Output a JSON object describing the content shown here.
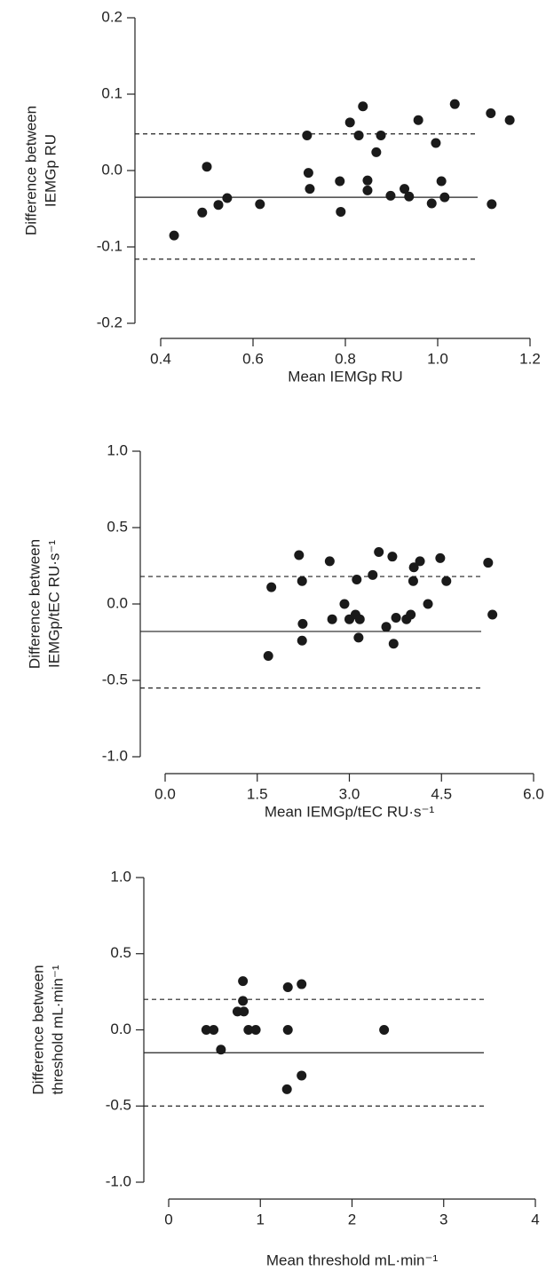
{
  "chart_data": [
    {
      "type": "scatter",
      "color": "#1a1a1a",
      "ylabel": [
        "Difference between",
        "IEMGp RU"
      ],
      "xlabel": "Mean IEMGp RU",
      "xlim": [
        0.4,
        1.2
      ],
      "xticks": [
        0.4,
        0.6,
        0.8,
        {
          "value": 1,
          "label": "1.0"
        },
        1.2
      ],
      "ylim": [
        -0.2,
        0.2
      ],
      "yticks": [
        -0.2,
        -0.1,
        {
          "value": 0,
          "label": "0.0"
        },
        0.1,
        0.2
      ],
      "mean_line": -0.035,
      "limit_lines": [
        0.048,
        -0.116
      ],
      "x": [
        0.429,
        0.49,
        0.5,
        0.525,
        0.544,
        0.615,
        0.717,
        0.72,
        0.723,
        0.788,
        0.79,
        0.81,
        0.829,
        0.838,
        0.848,
        0.848,
        0.867,
        0.877,
        0.898,
        0.928,
        0.938,
        0.958,
        0.987,
        0.996,
        1.008,
        1.015,
        1.037,
        1.115,
        1.117,
        1.156
      ],
      "y": [
        -0.085,
        -0.055,
        0.005,
        -0.045,
        -0.036,
        -0.044,
        0.046,
        -0.003,
        -0.024,
        -0.014,
        -0.054,
        0.063,
        0.046,
        0.084,
        -0.013,
        -0.026,
        0.024,
        0.046,
        -0.033,
        -0.024,
        -0.034,
        0.066,
        -0.043,
        0.036,
        -0.014,
        -0.035,
        0.087,
        0.075,
        -0.044,
        0.066
      ]
    },
    {
      "type": "scatter",
      "color": "#1a1a1a",
      "ylabel": [
        "Difference between",
        "IEMGp/tEC RU·s⁻¹"
      ],
      "xlabel": "Mean IEMGp/tEC RU·s⁻¹",
      "xlim": [
        0,
        6
      ],
      "xticks": [
        {
          "value": 0,
          "label": "0.0"
        },
        1.5,
        {
          "value": 3,
          "label": "3.0"
        },
        4.5,
        {
          "value": 6,
          "label": "6.0"
        }
      ],
      "ylim": [
        -1,
        1
      ],
      "yticks": [
        {
          "value": -1,
          "label": "-1.0"
        },
        -0.5,
        {
          "value": 0,
          "label": "0.0"
        },
        0.5,
        {
          "value": 1,
          "label": "1.0"
        }
      ],
      "mean_line": -0.18,
      "limit_lines": [
        0.18,
        -0.55
      ],
      "x": [
        1.73,
        1.68,
        2.18,
        2.23,
        2.24,
        2.23,
        2.68,
        2.72,
        2.92,
        3.0,
        3.1,
        3.12,
        3.15,
        3.17,
        3.38,
        3.48,
        3.6,
        3.7,
        3.72,
        3.76,
        3.93,
        4.0,
        4.04,
        4.05,
        4.15,
        4.28,
        4.48,
        4.58,
        5.26,
        5.33
      ],
      "y": [
        0.11,
        -0.34,
        0.32,
        0.15,
        -0.13,
        -0.24,
        0.28,
        -0.1,
        0,
        -0.1,
        -0.07,
        0.16,
        -0.22,
        -0.1,
        0.19,
        0.34,
        -0.15,
        0.31,
        -0.26,
        -0.09,
        -0.1,
        -0.07,
        0.15,
        0.24,
        0.28,
        0,
        0.3,
        0.15,
        0.27,
        -0.07
      ]
    },
    {
      "type": "scatter",
      "color": "#1a1a1a",
      "ylabel": [
        "Difference between",
        "threshold mL·min⁻¹"
      ],
      "xlabel": "Mean threshold mL·min⁻¹",
      "xlim": [
        0,
        4
      ],
      "xticks": [
        0,
        1,
        2,
        3,
        4
      ],
      "ylim": [
        -1,
        1
      ],
      "yticks": [
        {
          "value": -1,
          "label": "-1.0"
        },
        -0.5,
        {
          "value": 0,
          "label": "0.0"
        },
        0.5,
        {
          "value": 1,
          "label": "1.0"
        }
      ],
      "mean_line": -0.15,
      "limit_lines": [
        0.2,
        -0.5
      ],
      "x": [
        0.41,
        0.49,
        0.57,
        0.75,
        0.81,
        0.81,
        0.82,
        0.87,
        0.95,
        1.3,
        1.3,
        1.29,
        1.45,
        1.45,
        2.35
      ],
      "y": [
        0,
        0,
        -0.13,
        0.12,
        0.32,
        0.19,
        0.12,
        0,
        0,
        0.28,
        0,
        -0.39,
        0.3,
        -0.3,
        0
      ]
    }
  ]
}
